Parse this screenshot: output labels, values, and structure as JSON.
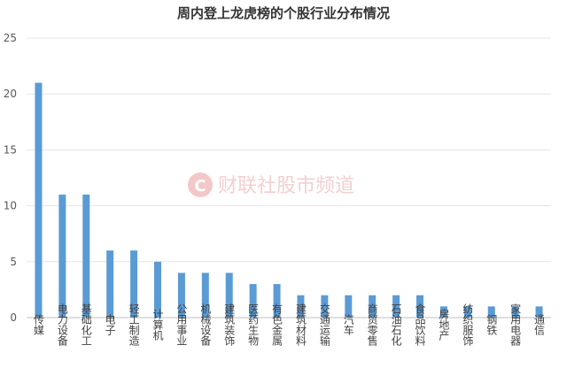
{
  "chart_data": {
    "type": "bar",
    "title": "周内登上龙虎榜的个股行业分布情况",
    "categories": [
      "传媒",
      "电力设备",
      "基础化工",
      "电子",
      "轻工制造",
      "计算机",
      "公用事业",
      "机械设备",
      "建筑装饰",
      "医药生物",
      "有色金属",
      "建筑材料",
      "交通运输",
      "汽车",
      "商贸零售",
      "石油石化",
      "食品饮料",
      "房地产",
      "纺织服饰",
      "钢铁",
      "家用电器",
      "通信"
    ],
    "values": [
      21,
      11,
      11,
      6,
      6,
      5,
      4,
      4,
      4,
      3,
      3,
      2,
      2,
      2,
      2,
      2,
      2,
      1,
      1,
      1,
      1,
      1
    ],
    "ylim": [
      0,
      25
    ],
    "yticks": [
      0,
      5,
      10,
      15,
      20,
      25
    ],
    "grid": true,
    "bar_color": "#5b9bd5"
  },
  "watermark": {
    "logo_letter": "C",
    "text": "财联社股市频道",
    "color": "#e24a4a"
  }
}
